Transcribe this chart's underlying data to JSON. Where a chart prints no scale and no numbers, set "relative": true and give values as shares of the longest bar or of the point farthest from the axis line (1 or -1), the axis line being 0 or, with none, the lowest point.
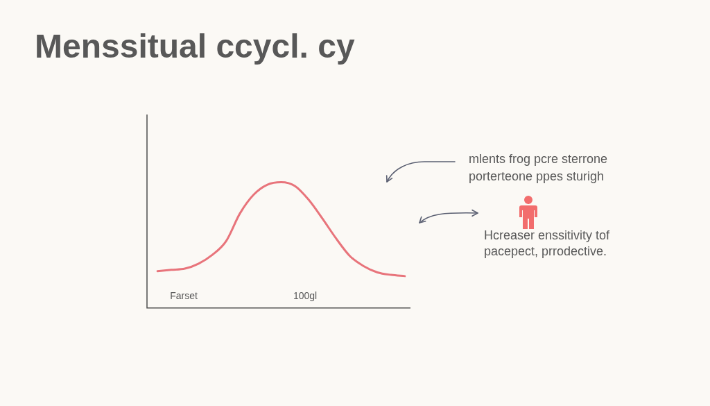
{
  "chart_data": {
    "type": "line",
    "title": "Menssitual ccycl. cy",
    "categories": [
      null,
      null,
      null,
      null,
      null,
      null,
      null,
      null,
      null,
      null,
      null,
      null,
      null,
      null,
      null,
      null,
      null,
      null,
      null
    ],
    "series": [
      {
        "color": "#e8747b",
        "values": [
          0.29,
          0.3,
          0.31,
          0.35,
          0.42,
          0.53,
          0.75,
          0.9,
          0.98,
          1,
          0.97,
          0.86,
          0.71,
          0.55,
          0.41,
          0.33,
          0.28,
          0.26,
          0.25
        ]
      }
    ],
    "relative": true,
    "marker": "none",
    "annotations": [
      "Farset",
      "100gl",
      "mlents frog pcre sterrone porterteone ppes sturigh",
      "Hcreaser enssitivity tof pacepect, prrodective."
    ]
  }
}
